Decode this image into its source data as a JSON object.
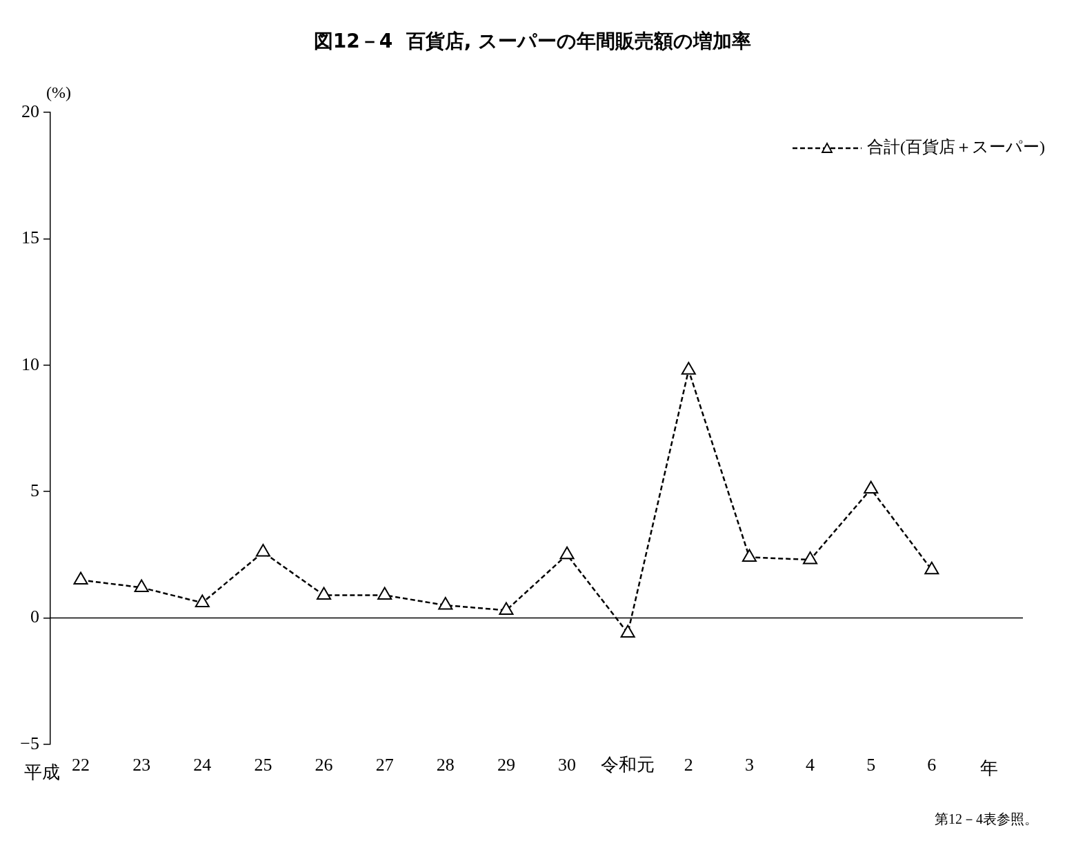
{
  "chart_data": {
    "type": "line",
    "title": "図12－4  百貨店, スーパーの年間販売額の増加率",
    "ylabel": "(%)",
    "xlabel": "年",
    "categories": [
      "22",
      "23",
      "24",
      "25",
      "26",
      "27",
      "28",
      "29",
      "30",
      "令和元",
      "2",
      "3",
      "4",
      "5",
      "6"
    ],
    "series": [
      {
        "name": "合計(百貨店＋スーパー)",
        "color": "#000000",
        "values": [
          1.5,
          1.2,
          0.6,
          2.6,
          0.9,
          0.9,
          0.5,
          0.3,
          2.5,
          -0.6,
          9.8,
          2.4,
          2.3,
          5.1,
          1.9
        ]
      }
    ],
    "ylim": [
      -5,
      20
    ],
    "yticks": [
      -5,
      0,
      5,
      10,
      15,
      20
    ],
    "grid": false,
    "legend": "top right",
    "marker": "triangle",
    "line_style": "dashed",
    "ref_lines": [
      {
        "axis": "y",
        "value": 0,
        "color": "#000000"
      }
    ],
    "annotations": [
      "平成",
      "第12－4表参照。"
    ]
  }
}
